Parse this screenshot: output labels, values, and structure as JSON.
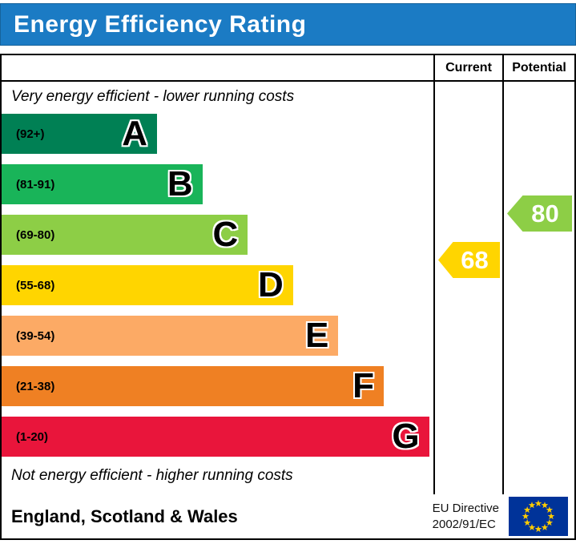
{
  "title": "Energy Efficiency Rating",
  "columns": {
    "current": "Current",
    "potential": "Potential"
  },
  "notes": {
    "top": "Very energy efficient - lower running costs",
    "bottom": "Not energy efficient - higher running costs"
  },
  "footer": {
    "region": "England, Scotland & Wales",
    "directive_line1": "EU Directive",
    "directive_line2": "2002/91/EC"
  },
  "colors": {
    "title_bar": "#1b7bc4",
    "border": "#000000",
    "flag_field": "#003399",
    "flag_stars": "#ffcc00"
  },
  "chart_data": {
    "type": "bar",
    "title": "Energy Efficiency Rating",
    "categories": [
      "A",
      "B",
      "C",
      "D",
      "E",
      "F",
      "G"
    ],
    "bands": [
      {
        "letter": "A",
        "range": "(92+)",
        "color": "#008054",
        "width_pct": 36
      },
      {
        "letter": "B",
        "range": "(81-91)",
        "color": "#19b459",
        "width_pct": 46.5
      },
      {
        "letter": "C",
        "range": "(69-80)",
        "color": "#8dce46",
        "width_pct": 57
      },
      {
        "letter": "D",
        "range": "(55-68)",
        "color": "#ffd500",
        "width_pct": 67.5
      },
      {
        "letter": "E",
        "range": "(39-54)",
        "color": "#fcaa65",
        "width_pct": 78
      },
      {
        "letter": "F",
        "range": "(21-38)",
        "color": "#ef8023",
        "width_pct": 88.5
      },
      {
        "letter": "G",
        "range": "(1-20)",
        "color": "#e9153b",
        "width_pct": 99
      }
    ],
    "current": {
      "label": "Current",
      "value": 68,
      "color": "#ffd500"
    },
    "potential": {
      "label": "Potential",
      "value": 80,
      "color": "#8dce46"
    }
  }
}
